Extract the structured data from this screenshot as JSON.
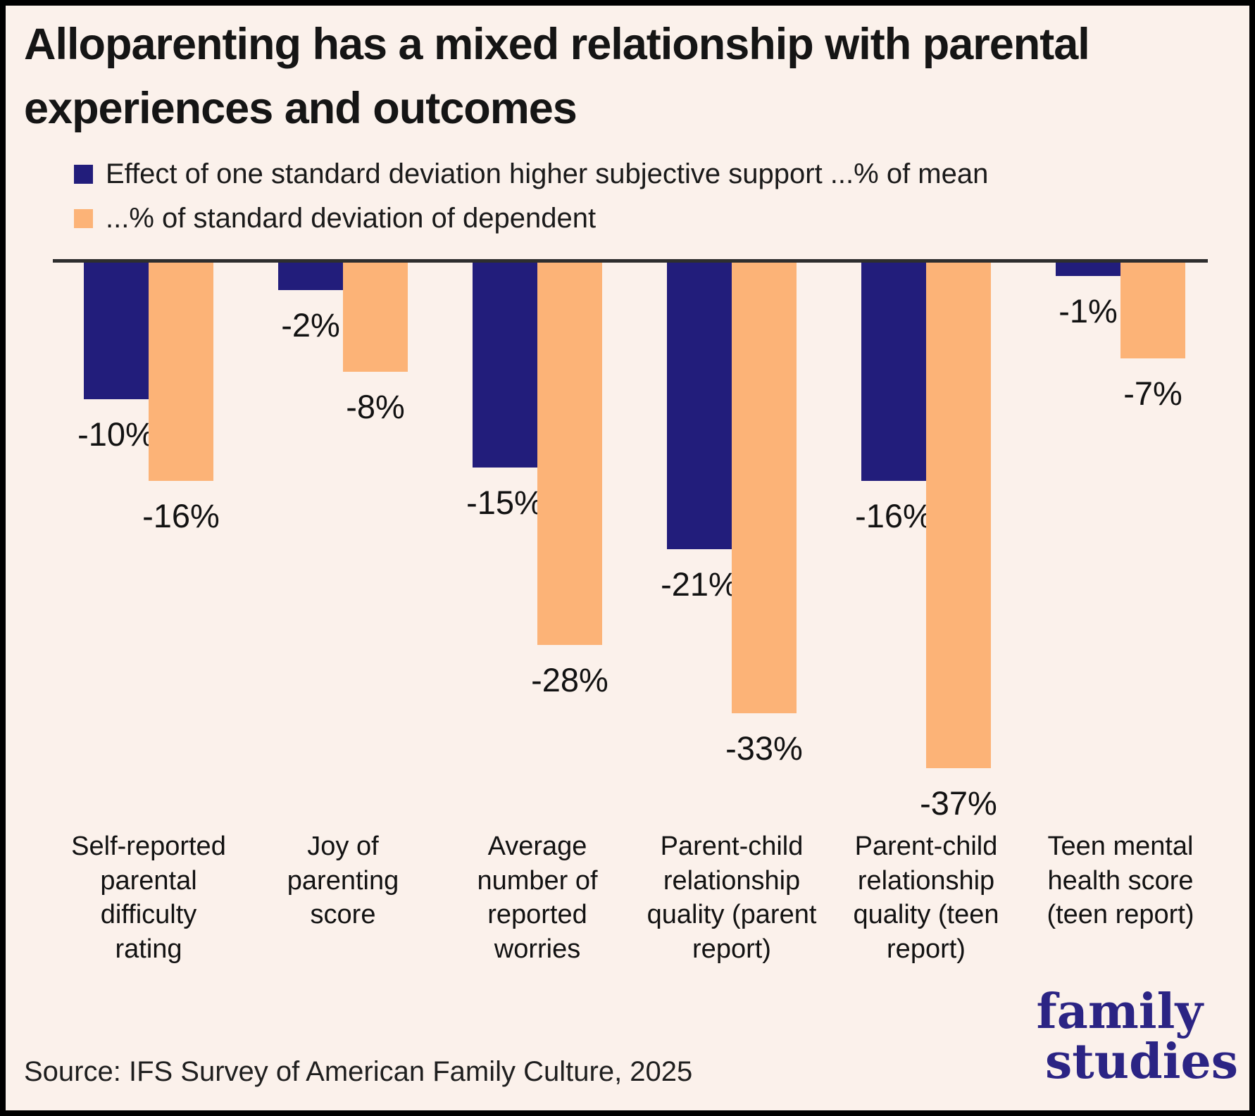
{
  "title": {
    "text": "Alloparenting has a mixed relationship with parental experiences and outcomes",
    "line1": "Alloparenting has a mixed relationship with parental",
    "line2": "experiences and outcomes"
  },
  "chart_data": {
    "type": "bar",
    "orientation": "vertical",
    "baseline_value": 0,
    "ylim": [
      -40,
      0
    ],
    "grid": false,
    "legend_position": "top-left",
    "value_label_format": "{value}%",
    "categories": [
      "Self-reported parental difficulty rating",
      "Joy of parenting score",
      "Average number of reported worries",
      "Parent-child relationship quality (parent report)",
      "Parent-child relationship quality (teen report)",
      "Teen mental health score (teen report)"
    ],
    "category_lines": [
      [
        "Self-reported",
        "parental",
        "difficulty",
        "rating"
      ],
      [
        "Joy of",
        "parenting",
        "score"
      ],
      [
        "Average",
        "number of",
        "reported",
        "worries"
      ],
      [
        "Parent-child",
        "relationship",
        "quality (parent",
        "report)"
      ],
      [
        "Parent-child",
        "relationship",
        "quality (teen",
        "report)"
      ],
      [
        "Teen mental",
        "health score",
        "(teen report)"
      ]
    ],
    "series": [
      {
        "name": "Effect of one standard deviation higher subjective support ...% of mean",
        "color": "#221d7b",
        "values": [
          -10,
          -2,
          -15,
          -21,
          -16,
          -1
        ],
        "value_labels": [
          "-10%",
          "-2%",
          "-15%",
          "-21%",
          "-16%",
          "-1%"
        ]
      },
      {
        "name": "...% of standard deviation of dependent",
        "color": "#fcb377",
        "values": [
          -16,
          -8,
          -28,
          -33,
          -37,
          -7
        ],
        "value_labels": [
          "-16%",
          "-8%",
          "-28%",
          "-33%",
          "-37%",
          "-7%"
        ]
      }
    ]
  },
  "source": "Source: IFS Survey of American Family Culture, 2025",
  "logo": {
    "line1": "family",
    "line2": "studies"
  },
  "colors": {
    "background": "#fbf1eb",
    "frame": "#000000",
    "axis": "#2e2e2e",
    "navy": "#221d7b",
    "orange": "#fcb377",
    "logo_navy": "#2b2484",
    "text": "#151515"
  }
}
